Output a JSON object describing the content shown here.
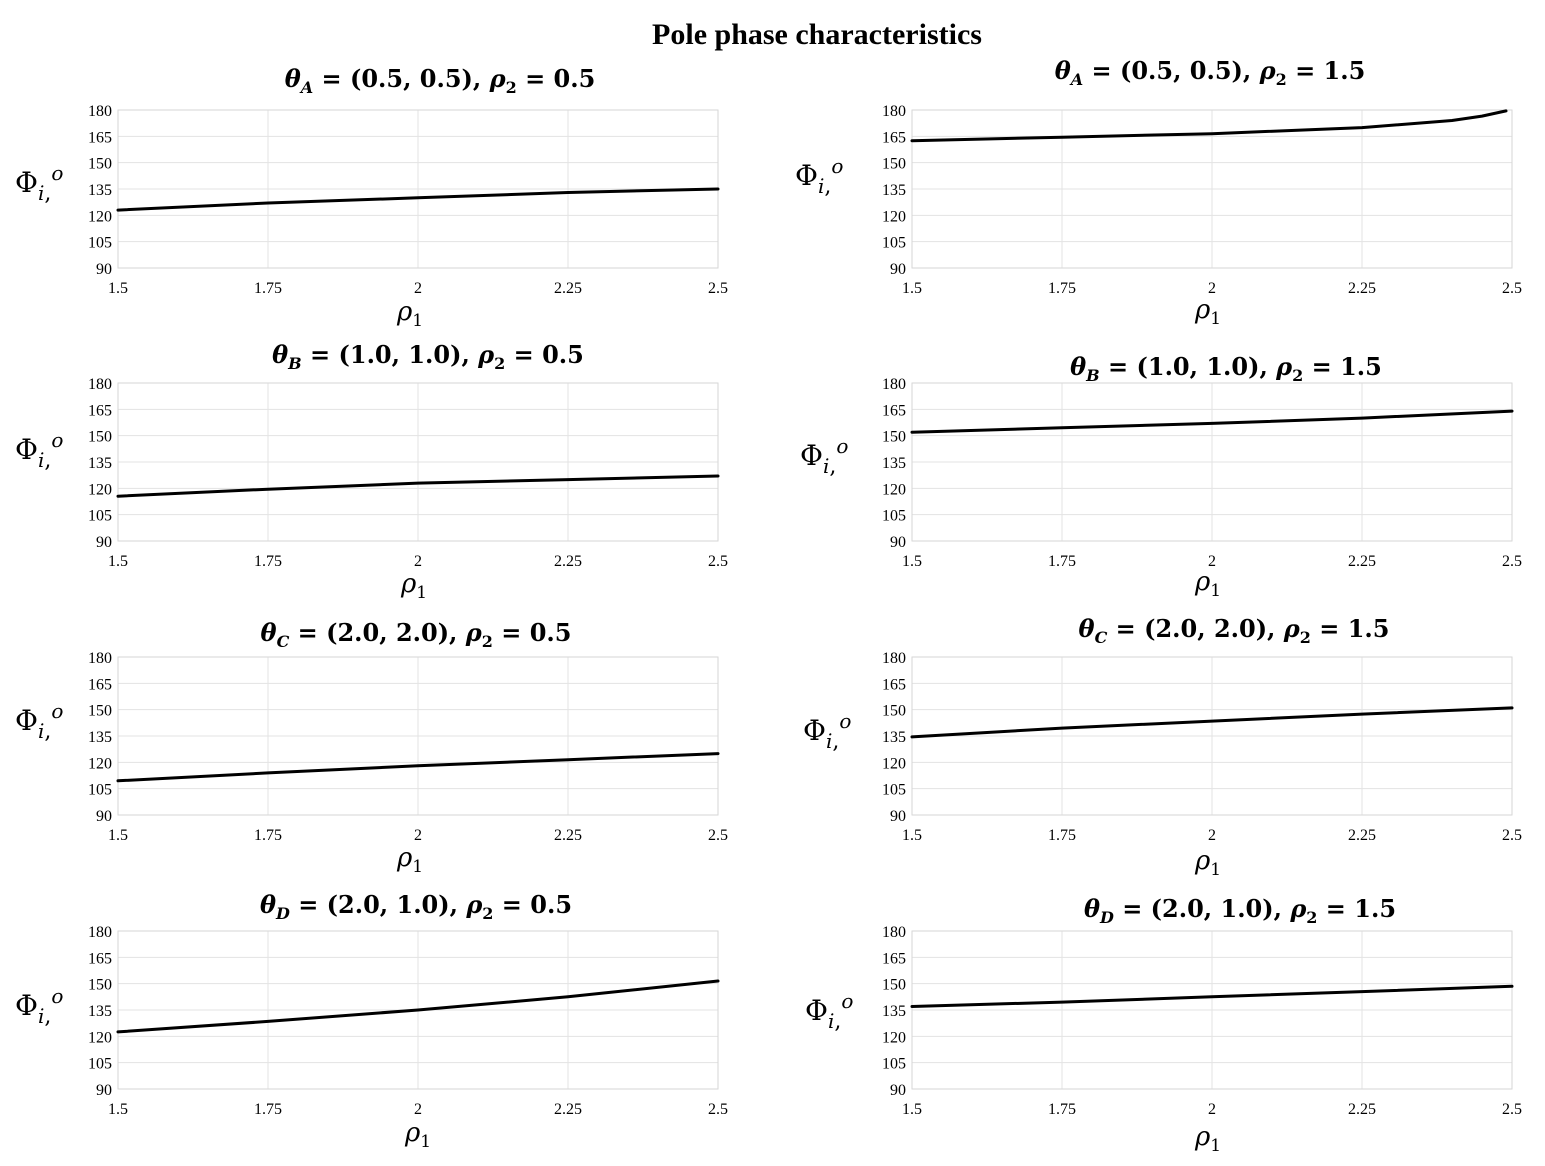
{
  "title": "Pole phase characteristics",
  "chart_data": [
    {
      "type": "line",
      "title": "θ_A = (0.5, 0.5), ρ_2 = 0.5",
      "title_parts": {
        "sym": "θ",
        "sub": "A",
        "value": "(0.5, 0.5)",
        "rho_value": "0.5"
      },
      "xlabel": "ρ_1",
      "xlabel_parts": {
        "sym": "ρ",
        "sub": "1"
      },
      "ylabel": "Φ_i,^o",
      "ylabel_parts": {
        "sym": "Φ",
        "sub": "i",
        "sup": "o"
      },
      "xlim": [
        1.5,
        2.5
      ],
      "ylim": [
        90,
        180
      ],
      "x_ticks": [
        "1.5",
        "1.75",
        "2",
        "2.25",
        "2.5"
      ],
      "y_ticks": [
        "180",
        "165",
        "150",
        "135",
        "120",
        "105",
        "90"
      ],
      "grid": true,
      "series": [
        {
          "x": [
            1.5,
            1.75,
            2.0,
            2.25,
            2.5
          ],
          "values": [
            123,
            127,
            130,
            133,
            135
          ]
        }
      ]
    },
    {
      "type": "line",
      "title": "θ_A = (0.5, 0.5), ρ_2 = 1.5",
      "title_parts": {
        "sym": "θ",
        "sub": "A",
        "value": "(0.5, 0.5)",
        "rho_value": "1.5"
      },
      "xlabel": "ρ_1",
      "xlabel_parts": {
        "sym": "ρ",
        "sub": "1"
      },
      "ylabel": "Φ_i,^o",
      "ylabel_parts": {
        "sym": "Φ",
        "sub": "i",
        "sup": "o"
      },
      "xlim": [
        1.5,
        2.5
      ],
      "ylim": [
        90,
        180
      ],
      "x_ticks": [
        "1.5",
        "1.75",
        "2",
        "2.25",
        "2.5"
      ],
      "y_ticks": [
        "180",
        "165",
        "150",
        "135",
        "120",
        "105",
        "90"
      ],
      "grid": true,
      "series": [
        {
          "x": [
            1.5,
            1.75,
            2.0,
            2.25,
            2.4,
            2.45,
            2.49
          ],
          "values": [
            162.5,
            164.5,
            166.5,
            170,
            174,
            176.5,
            179.5
          ]
        }
      ]
    },
    {
      "type": "line",
      "title": "θ_B = (1.0, 1.0), ρ_2 = 0.5",
      "title_parts": {
        "sym": "θ",
        "sub": "B",
        "value": "(1.0, 1.0)",
        "rho_value": "0.5"
      },
      "xlabel": "ρ_1",
      "xlabel_parts": {
        "sym": "ρ",
        "sub": "1"
      },
      "ylabel": "Φ_i,^o",
      "ylabel_parts": {
        "sym": "Φ",
        "sub": "i",
        "sup": "o"
      },
      "xlim": [
        1.5,
        2.5
      ],
      "ylim": [
        90,
        180
      ],
      "x_ticks": [
        "1.5",
        "1.75",
        "2",
        "2.25",
        "2.5"
      ],
      "y_ticks": [
        "180",
        "165",
        "150",
        "135",
        "120",
        "105",
        "90"
      ],
      "grid": true,
      "series": [
        {
          "x": [
            1.5,
            1.75,
            2.0,
            2.25,
            2.5
          ],
          "values": [
            115.5,
            119.5,
            123,
            125,
            127
          ]
        }
      ]
    },
    {
      "type": "line",
      "title": "θ_B = (1.0, 1.0), ρ_2 = 1.5",
      "title_parts": {
        "sym": "θ",
        "sub": "B",
        "value": "(1.0, 1.0)",
        "rho_value": "1.5"
      },
      "xlabel": "ρ_1",
      "xlabel_parts": {
        "sym": "ρ",
        "sub": "1"
      },
      "ylabel": "Φ_i,^o",
      "ylabel_parts": {
        "sym": "Φ",
        "sub": "i",
        "sup": "o"
      },
      "xlim": [
        1.5,
        2.5
      ],
      "ylim": [
        90,
        180
      ],
      "x_ticks": [
        "1.5",
        "1.75",
        "2",
        "2.25",
        "2.5"
      ],
      "y_ticks": [
        "180",
        "165",
        "150",
        "135",
        "120",
        "105",
        "90"
      ],
      "grid": true,
      "series": [
        {
          "x": [
            1.5,
            1.75,
            2.0,
            2.25,
            2.5
          ],
          "values": [
            152,
            154.5,
            157,
            160,
            164
          ]
        }
      ]
    },
    {
      "type": "line",
      "title": "θ_C = (2.0, 2.0), ρ_2 = 0.5",
      "title_parts": {
        "sym": "θ",
        "sub": "C",
        "value": "(2.0, 2.0)",
        "rho_value": "0.5"
      },
      "xlabel": "ρ_1",
      "xlabel_parts": {
        "sym": "ρ",
        "sub": "1"
      },
      "ylabel": "Φ_i,^o",
      "ylabel_parts": {
        "sym": "Φ",
        "sub": "i",
        "sup": "o"
      },
      "xlim": [
        1.5,
        2.5
      ],
      "ylim": [
        90,
        180
      ],
      "x_ticks": [
        "1.5",
        "1.75",
        "2",
        "2.25",
        "2.5"
      ],
      "y_ticks": [
        "180",
        "165",
        "150",
        "135",
        "120",
        "105",
        "90"
      ],
      "grid": true,
      "series": [
        {
          "x": [
            1.5,
            1.75,
            2.0,
            2.25,
            2.5
          ],
          "values": [
            109.5,
            114,
            118,
            121.5,
            125
          ]
        }
      ]
    },
    {
      "type": "line",
      "title": "θ_C = (2.0, 2.0), ρ_2 = 1.5",
      "title_parts": {
        "sym": "θ",
        "sub": "C",
        "value": "(2.0, 2.0)",
        "rho_value": "1.5"
      },
      "xlabel": "ρ_1",
      "xlabel_parts": {
        "sym": "ρ",
        "sub": "1"
      },
      "ylabel": "Φ_i,^o",
      "ylabel_parts": {
        "sym": "Φ",
        "sub": "i",
        "sup": "o"
      },
      "xlim": [
        1.5,
        2.5
      ],
      "ylim": [
        90,
        180
      ],
      "x_ticks": [
        "1.5",
        "1.75",
        "2",
        "2.25",
        "2.5"
      ],
      "y_ticks": [
        "180",
        "165",
        "150",
        "135",
        "120",
        "105",
        "90"
      ],
      "grid": true,
      "series": [
        {
          "x": [
            1.5,
            1.75,
            2.0,
            2.25,
            2.5
          ],
          "values": [
            134.5,
            139.5,
            143.5,
            147.5,
            151
          ]
        }
      ]
    },
    {
      "type": "line",
      "title": "θ_D = (2.0, 1.0), ρ_2 = 0.5",
      "title_parts": {
        "sym": "θ",
        "sub": "D",
        "value": "(2.0, 1.0)",
        "rho_value": "0.5"
      },
      "xlabel": "ρ_1",
      "xlabel_parts": {
        "sym": "ρ",
        "sub": "1"
      },
      "ylabel": "Φ_i,^o",
      "ylabel_parts": {
        "sym": "Φ",
        "sub": "i",
        "sup": "o"
      },
      "xlim": [
        1.5,
        2.5
      ],
      "ylim": [
        90,
        180
      ],
      "x_ticks": [
        "1.5",
        "1.75",
        "2",
        "2.25",
        "2.5"
      ],
      "y_ticks": [
        "180",
        "165",
        "150",
        "135",
        "120",
        "105",
        "90"
      ],
      "grid": true,
      "series": [
        {
          "x": [
            1.5,
            1.75,
            2.0,
            2.25,
            2.5
          ],
          "values": [
            122.5,
            128.5,
            135,
            142.5,
            151.5
          ]
        }
      ]
    },
    {
      "type": "line",
      "title": "θ_D = (2.0, 1.0), ρ_2 = 1.5",
      "title_parts": {
        "sym": "θ",
        "sub": "D",
        "value": "(2.0, 1.0)",
        "rho_value": "1.5"
      },
      "xlabel": "ρ_1",
      "xlabel_parts": {
        "sym": "ρ",
        "sub": "1"
      },
      "ylabel": "Φ_i,^o",
      "ylabel_parts": {
        "sym": "Φ",
        "sub": "i",
        "sup": "o"
      },
      "xlim": [
        1.5,
        2.5
      ],
      "ylim": [
        90,
        180
      ],
      "x_ticks": [
        "1.5",
        "1.75",
        "2",
        "2.25",
        "2.5"
      ],
      "y_ticks": [
        "180",
        "165",
        "150",
        "135",
        "120",
        "105",
        "90"
      ],
      "grid": true,
      "series": [
        {
          "x": [
            1.5,
            1.75,
            2.0,
            2.25,
            2.5
          ],
          "values": [
            137,
            139.5,
            142.5,
            145.5,
            148.5
          ]
        }
      ]
    }
  ]
}
